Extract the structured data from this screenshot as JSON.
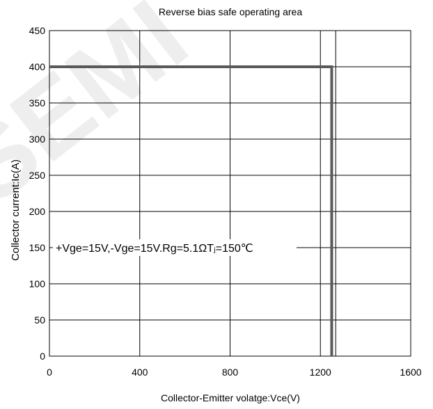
{
  "chart_data": {
    "type": "line",
    "title": "Reverse bias safe operating area",
    "xlabel": "Collector-Emitter volatge:Vce(V)",
    "ylabel": "Collector current:Ic(A)",
    "xlim": [
      0,
      1600
    ],
    "ylim": [
      0,
      450
    ],
    "xticks": [
      0,
      400,
      800,
      1200,
      1600
    ],
    "yticks": [
      0,
      50,
      100,
      150,
      200,
      250,
      300,
      350,
      400,
      450
    ],
    "extra_vlines": [
      1200
    ],
    "grid": true,
    "annotation": "+Vge=15V,-Vge=15V.Rg=5.1ΩTⱼ=150℃",
    "watermark": "SEMI",
    "series": [
      {
        "x": [
          0,
          1250,
          1250
        ],
        "y": [
          400,
          400,
          0
        ],
        "color": "#595959"
      }
    ]
  }
}
